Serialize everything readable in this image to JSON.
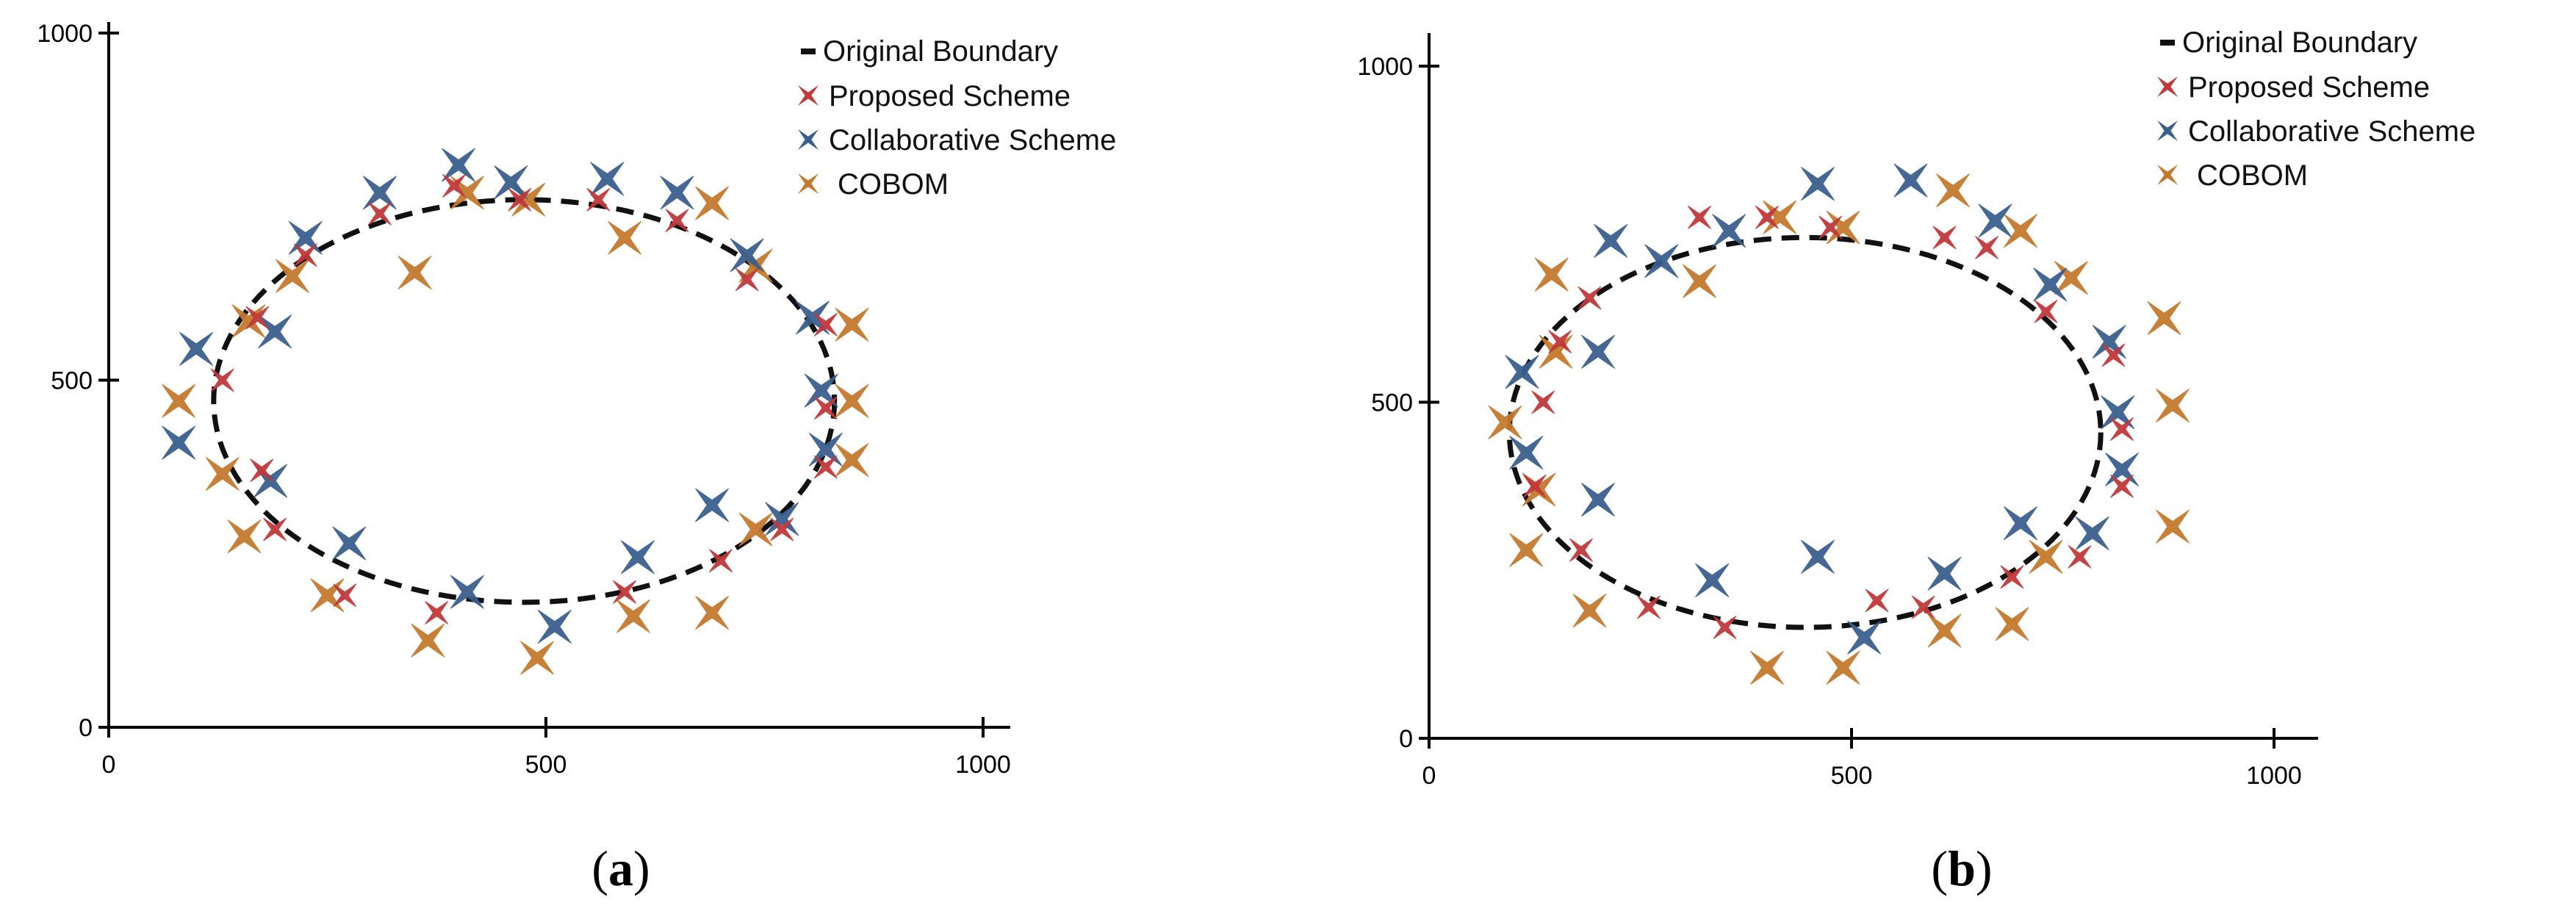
{
  "chart_data": [
    {
      "type": "scatter",
      "panel_label": "a",
      "xlim": [
        0,
        1000
      ],
      "ylim": [
        0,
        1000
      ],
      "xticks": [
        "0",
        "500",
        "1000"
      ],
      "yticks": [
        "0",
        "500",
        "1000"
      ],
      "boundary": {
        "label": "Original Boundary",
        "center": [
          475,
          470
        ],
        "rx": 355,
        "ry": 290
      },
      "series": [
        {
          "name": "Proposed Scheme",
          "color": "#c0393b",
          "size": "small",
          "points": [
            [
              130,
              500
            ],
            [
              170,
              590
            ],
            [
              175,
              370
            ],
            [
              190,
              285
            ],
            [
              225,
              680
            ],
            [
              270,
              190
            ],
            [
              310,
              740
            ],
            [
              375,
              165
            ],
            [
              395,
              780
            ],
            [
              470,
              760
            ],
            [
              560,
              760
            ],
            [
              590,
              195
            ],
            [
              650,
              730
            ],
            [
              700,
              240
            ],
            [
              730,
              645
            ],
            [
              770,
              285
            ],
            [
              820,
              580
            ],
            [
              820,
              460
            ],
            [
              820,
              375
            ]
          ]
        },
        {
          "name": "Collaborative Scheme",
          "color": "#3a5f8e",
          "size": "large",
          "points": [
            [
              100,
              545
            ],
            [
              80,
              410
            ],
            [
              190,
              570
            ],
            [
              185,
              355
            ],
            [
              225,
              705
            ],
            [
              275,
              265
            ],
            [
              310,
              770
            ],
            [
              400,
              810
            ],
            [
              410,
              195
            ],
            [
              460,
              785
            ],
            [
              510,
              145
            ],
            [
              570,
              790
            ],
            [
              605,
              245
            ],
            [
              650,
              770
            ],
            [
              690,
              320
            ],
            [
              730,
              680
            ],
            [
              770,
              300
            ],
            [
              805,
              590
            ],
            [
              815,
              485
            ],
            [
              820,
              400
            ]
          ]
        },
        {
          "name": "COBOM",
          "color": "#c47a2e",
          "size": "large",
          "points": [
            [
              80,
              470
            ],
            [
              130,
              365
            ],
            [
              160,
              585
            ],
            [
              155,
              275
            ],
            [
              210,
              650
            ],
            [
              250,
              190
            ],
            [
              350,
              655
            ],
            [
              365,
              125
            ],
            [
              410,
              770
            ],
            [
              480,
              760
            ],
            [
              490,
              100
            ],
            [
              590,
              705
            ],
            [
              600,
              160
            ],
            [
              690,
              755
            ],
            [
              690,
              165
            ],
            [
              740,
              665
            ],
            [
              740,
              285
            ],
            [
              850,
              580
            ],
            [
              850,
              470
            ],
            [
              850,
              385
            ]
          ]
        }
      ]
    },
    {
      "type": "scatter",
      "panel_label": "b",
      "xlim": [
        0,
        1000
      ],
      "ylim": [
        0,
        1000
      ],
      "xticks": [
        "0",
        "500",
        "1000"
      ],
      "yticks": [
        "0",
        "500",
        "1000"
      ],
      "boundary": {
        "label": "Original Boundary",
        "center": [
          445,
          455
        ],
        "rx": 350,
        "ry": 290
      },
      "series": [
        {
          "name": "Proposed Scheme",
          "color": "#c0393b",
          "size": "small",
          "points": [
            [
              125,
              375
            ],
            [
              135,
              500
            ],
            [
              155,
              590
            ],
            [
              180,
              280
            ],
            [
              190,
              655
            ],
            [
              260,
              195
            ],
            [
              320,
              775
            ],
            [
              350,
              165
            ],
            [
              400,
              775
            ],
            [
              475,
              760
            ],
            [
              530,
              205
            ],
            [
              585,
              195
            ],
            [
              610,
              745
            ],
            [
              660,
              730
            ],
            [
              690,
              240
            ],
            [
              730,
              635
            ],
            [
              770,
              270
            ],
            [
              810,
              570
            ],
            [
              820,
              460
            ],
            [
              820,
              375
            ]
          ]
        },
        {
          "name": "Collaborative Scheme",
          "color": "#3a5f8e",
          "size": "large",
          "points": [
            [
              110,
              545
            ],
            [
              115,
              425
            ],
            [
              200,
              575
            ],
            [
              200,
              355
            ],
            [
              215,
              740
            ],
            [
              275,
              710
            ],
            [
              335,
              235
            ],
            [
              355,
              755
            ],
            [
              460,
              825
            ],
            [
              460,
              270
            ],
            [
              515,
              150
            ],
            [
              570,
              830
            ],
            [
              610,
              245
            ],
            [
              670,
              770
            ],
            [
              700,
              320
            ],
            [
              735,
              675
            ],
            [
              785,
              305
            ],
            [
              805,
              590
            ],
            [
              815,
              485
            ],
            [
              820,
              400
            ]
          ]
        },
        {
          "name": "COBOM",
          "color": "#c47a2e",
          "size": "large",
          "points": [
            [
              90,
              470
            ],
            [
              115,
              280
            ],
            [
              130,
              370
            ],
            [
              145,
              690
            ],
            [
              150,
              575
            ],
            [
              190,
              190
            ],
            [
              320,
              680
            ],
            [
              400,
              105
            ],
            [
              415,
              775
            ],
            [
              490,
              760
            ],
            [
              490,
              105
            ],
            [
              610,
              160
            ],
            [
              620,
              815
            ],
            [
              690,
              170
            ],
            [
              700,
              755
            ],
            [
              730,
              270
            ],
            [
              760,
              685
            ],
            [
              870,
              625
            ],
            [
              880,
              495
            ],
            [
              880,
              315
            ]
          ]
        }
      ]
    }
  ]
}
